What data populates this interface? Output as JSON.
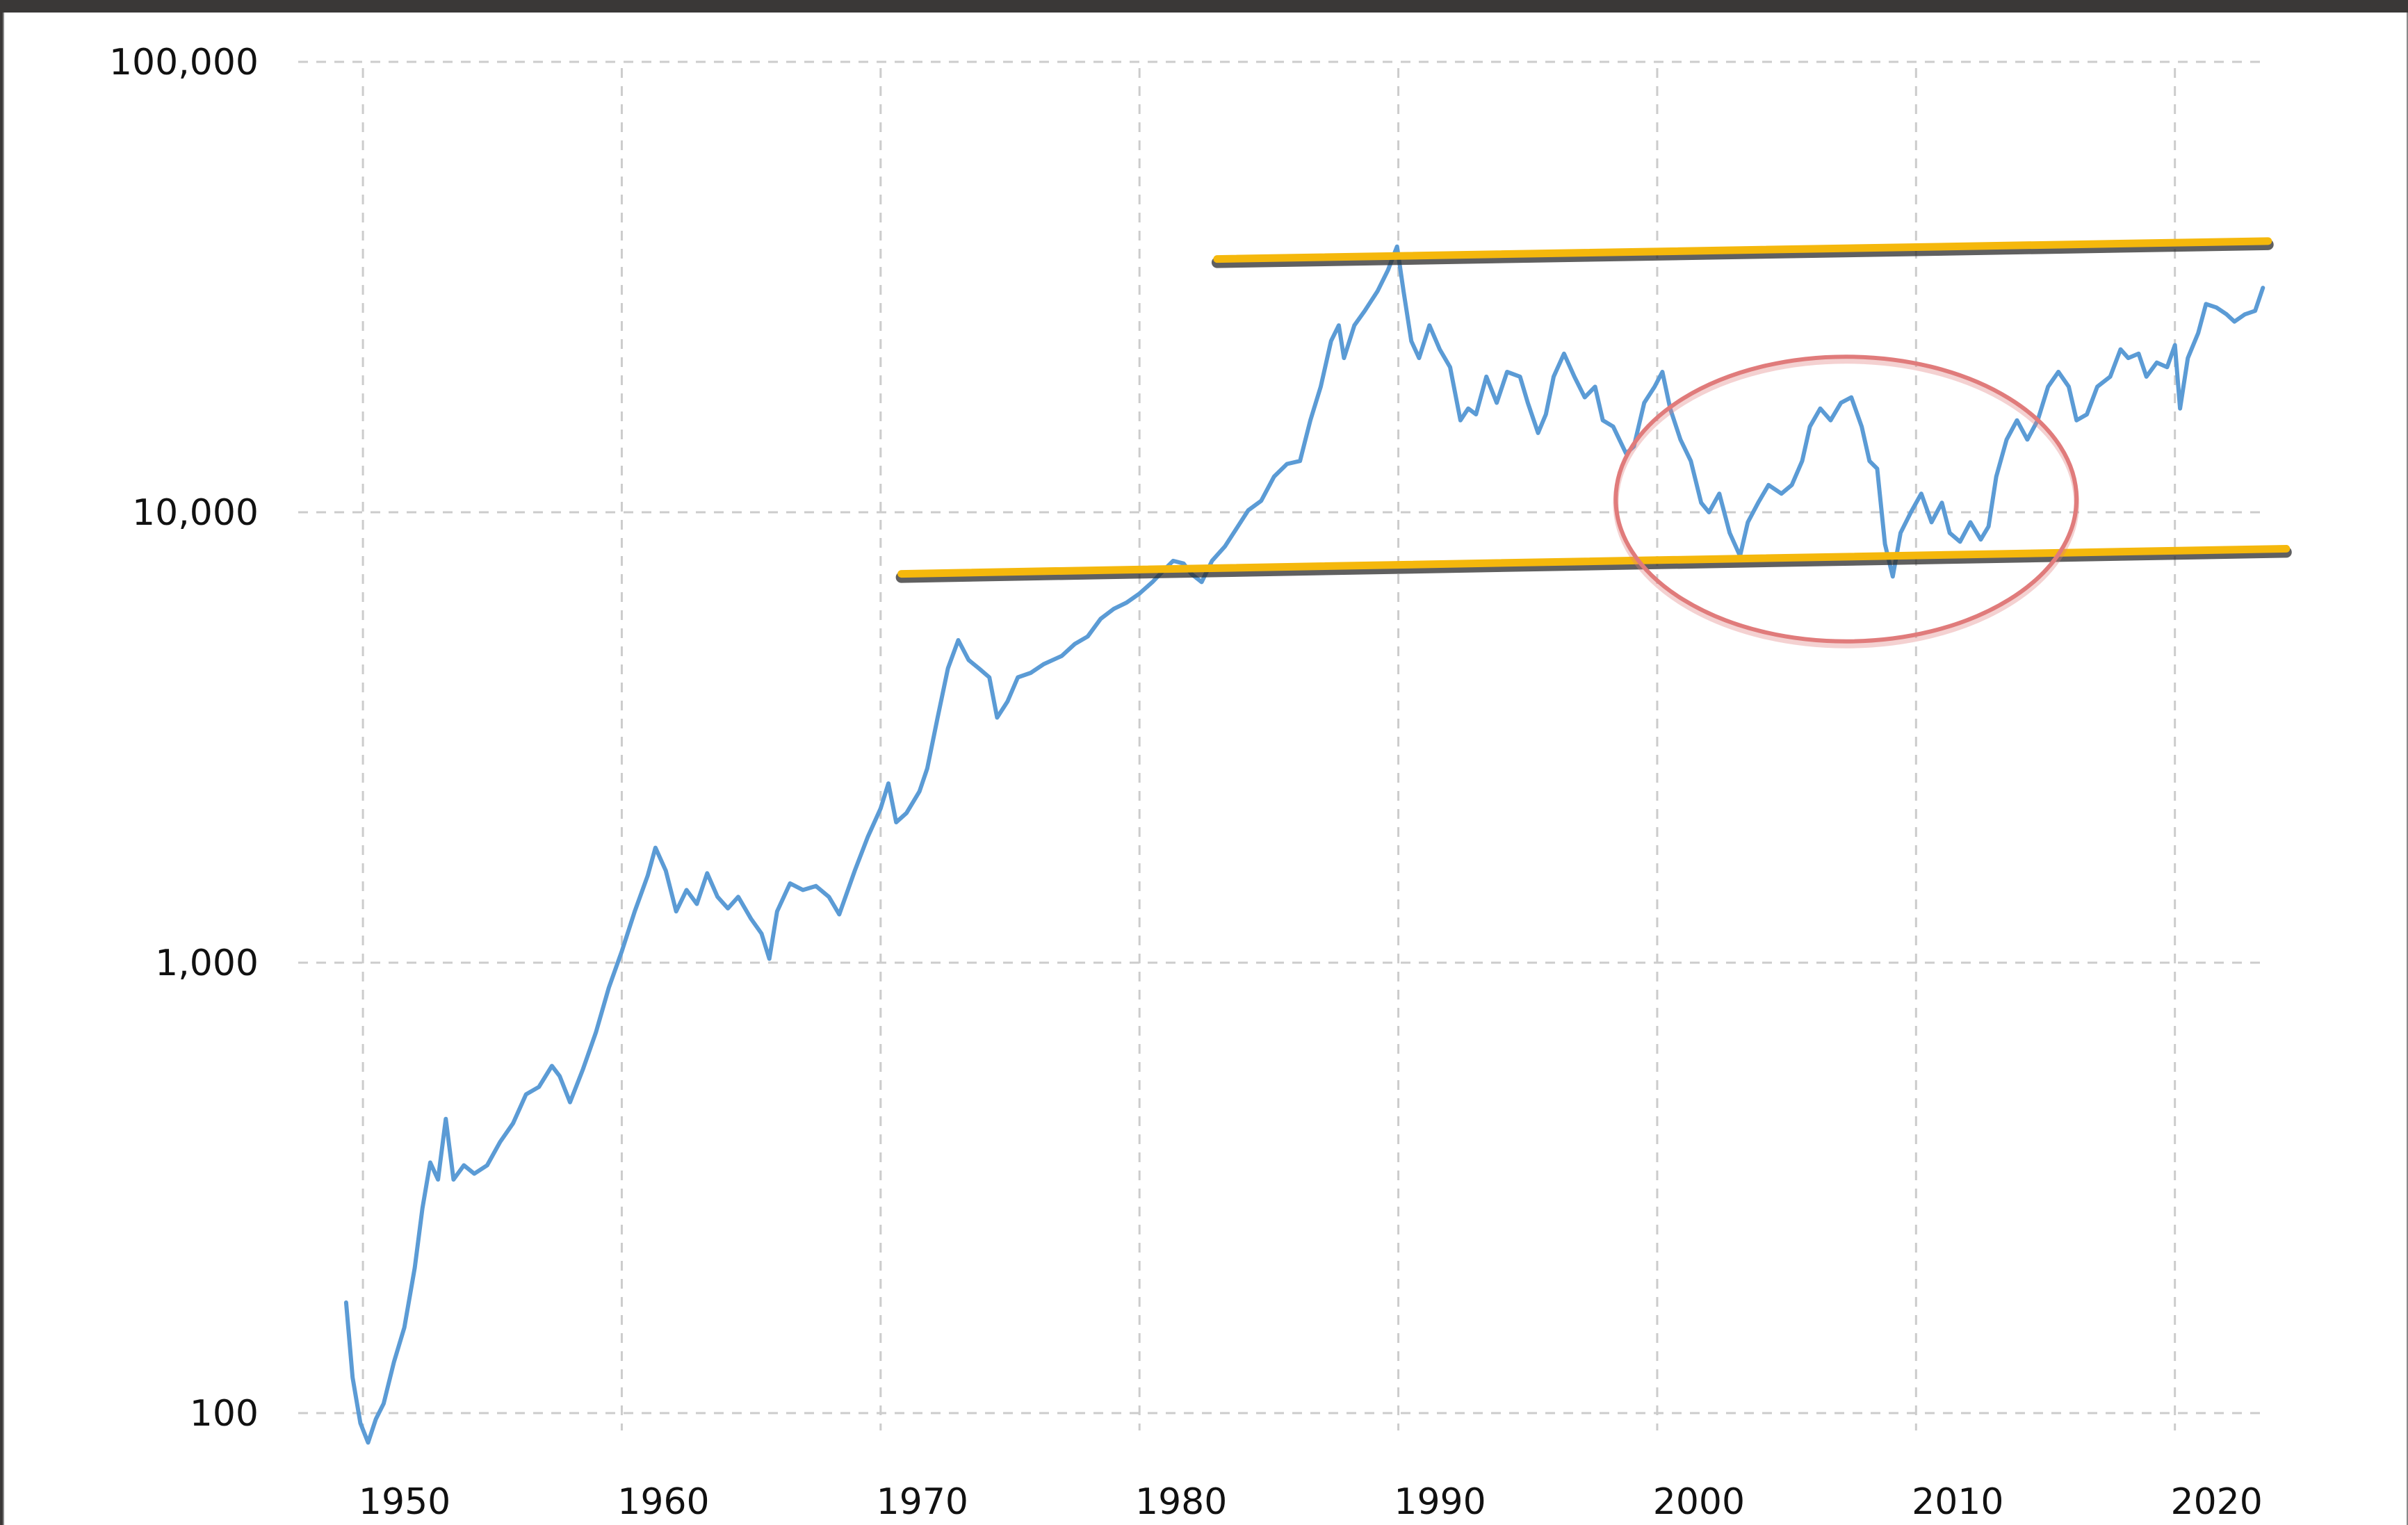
{
  "chart_data": {
    "type": "line",
    "title": "",
    "xlabel": "",
    "ylabel": "",
    "y_scale": "log",
    "xlim": [
      1947.5,
      2023.5
    ],
    "ylim": [
      100,
      100000
    ],
    "grid": true,
    "grid_style": "dashed",
    "x_ticks": [
      1950,
      1960,
      1970,
      1980,
      1990,
      2000,
      2010,
      2020
    ],
    "x_tick_labels": [
      "1950",
      "1960",
      "1970",
      "1980",
      "1990",
      "2000",
      "2010",
      "2020"
    ],
    "y_ticks": [
      100,
      1000,
      10000,
      100000
    ],
    "y_tick_labels": [
      "100",
      "1,000",
      "10,000",
      "100,000"
    ],
    "colors": {
      "line": "#5b9bd5",
      "trend": "#f5b80c",
      "highlight": "#e07b7b",
      "grid": "#cccccc"
    },
    "series": [
      {
        "points": [
          [
            1949.35,
            176
          ],
          [
            1949.6,
            120
          ],
          [
            1949.9,
            95
          ],
          [
            1950.2,
            86
          ],
          [
            1950.5,
            97
          ],
          [
            1950.8,
            105
          ],
          [
            1951.2,
            130
          ],
          [
            1951.6,
            155
          ],
          [
            1952.0,
            210
          ],
          [
            1952.3,
            285
          ],
          [
            1952.6,
            360
          ],
          [
            1952.9,
            330
          ],
          [
            1953.2,
            450
          ],
          [
            1953.5,
            330
          ],
          [
            1953.9,
            355
          ],
          [
            1954.3,
            340
          ],
          [
            1954.8,
            355
          ],
          [
            1955.3,
            400
          ],
          [
            1955.8,
            440
          ],
          [
            1956.3,
            510
          ],
          [
            1956.8,
            530
          ],
          [
            1957.3,
            590
          ],
          [
            1957.6,
            560
          ],
          [
            1958.0,
            490
          ],
          [
            1958.5,
            580
          ],
          [
            1959.0,
            700
          ],
          [
            1959.5,
            880
          ],
          [
            1960.0,
            1060
          ],
          [
            1960.5,
            1300
          ],
          [
            1961.0,
            1560
          ],
          [
            1961.3,
            1800
          ],
          [
            1961.7,
            1600
          ],
          [
            1962.1,
            1300
          ],
          [
            1962.5,
            1450
          ],
          [
            1962.9,
            1350
          ],
          [
            1963.3,
            1580
          ],
          [
            1963.7,
            1400
          ],
          [
            1964.1,
            1320
          ],
          [
            1964.5,
            1400
          ],
          [
            1965.0,
            1250
          ],
          [
            1965.4,
            1160
          ],
          [
            1965.7,
            1020
          ],
          [
            1966.0,
            1300
          ],
          [
            1966.5,
            1500
          ],
          [
            1967.0,
            1450
          ],
          [
            1967.5,
            1480
          ],
          [
            1968.0,
            1400
          ],
          [
            1968.4,
            1280
          ],
          [
            1969.0,
            1600
          ],
          [
            1969.5,
            1900
          ],
          [
            1970.0,
            2200
          ],
          [
            1970.3,
            2500
          ],
          [
            1970.6,
            2050
          ],
          [
            1971.0,
            2150
          ],
          [
            1971.5,
            2400
          ],
          [
            1971.8,
            2700
          ],
          [
            1972.2,
            3500
          ],
          [
            1972.6,
            4500
          ],
          [
            1973.0,
            5200
          ],
          [
            1973.4,
            4700
          ],
          [
            1973.8,
            4500
          ],
          [
            1974.2,
            4300
          ],
          [
            1974.5,
            3500
          ],
          [
            1974.9,
            3800
          ],
          [
            1975.3,
            4300
          ],
          [
            1975.8,
            4400
          ],
          [
            1976.3,
            4600
          ],
          [
            1977.0,
            4800
          ],
          [
            1977.5,
            5100
          ],
          [
            1978.0,
            5300
          ],
          [
            1978.5,
            5800
          ],
          [
            1979.0,
            6100
          ],
          [
            1979.5,
            6300
          ],
          [
            1980.0,
            6600
          ],
          [
            1980.5,
            7000
          ],
          [
            1981.0,
            7500
          ],
          [
            1981.3,
            7800
          ],
          [
            1981.7,
            7700
          ],
          [
            1982.0,
            7300
          ],
          [
            1982.4,
            7000
          ],
          [
            1982.8,
            7800
          ],
          [
            1983.3,
            8400
          ],
          [
            1983.8,
            9300
          ],
          [
            1984.2,
            10100
          ],
          [
            1984.7,
            10600
          ],
          [
            1985.2,
            12000
          ],
          [
            1985.7,
            12800
          ],
          [
            1986.2,
            13000
          ],
          [
            1986.6,
            16000
          ],
          [
            1987.0,
            19000
          ],
          [
            1987.4,
            24000
          ],
          [
            1987.7,
            26000
          ],
          [
            1987.9,
            22000
          ],
          [
            1988.3,
            26000
          ],
          [
            1988.7,
            28000
          ],
          [
            1989.2,
            31000
          ],
          [
            1989.6,
            34500
          ],
          [
            1989.95,
            38900
          ],
          [
            1990.2,
            31000
          ],
          [
            1990.5,
            24000
          ],
          [
            1990.8,
            22000
          ],
          [
            1991.2,
            26000
          ],
          [
            1991.6,
            23000
          ],
          [
            1992.0,
            21000
          ],
          [
            1992.4,
            16000
          ],
          [
            1992.7,
            17000
          ],
          [
            1993.0,
            16500
          ],
          [
            1993.4,
            20000
          ],
          [
            1993.8,
            17500
          ],
          [
            1994.2,
            20500
          ],
          [
            1994.7,
            20000
          ],
          [
            1995.0,
            17500
          ],
          [
            1995.4,
            15000
          ],
          [
            1995.7,
            16500
          ],
          [
            1996.0,
            20000
          ],
          [
            1996.4,
            22500
          ],
          [
            1996.8,
            20000
          ],
          [
            1997.2,
            18000
          ],
          [
            1997.6,
            19000
          ],
          [
            1997.9,
            16000
          ],
          [
            1998.3,
            15500
          ],
          [
            1998.8,
            13500
          ],
          [
            1999.1,
            14000
          ],
          [
            1999.5,
            17500
          ],
          [
            1999.9,
            19000
          ],
          [
            2000.2,
            20500
          ],
          [
            2000.5,
            17000
          ],
          [
            2000.9,
            14500
          ],
          [
            2001.3,
            13000
          ],
          [
            2001.7,
            10500
          ],
          [
            2002.0,
            10000
          ],
          [
            2002.4,
            11000
          ],
          [
            2002.8,
            9000
          ],
          [
            2003.2,
            8000
          ],
          [
            2003.5,
            9500
          ],
          [
            2003.9,
            10500
          ],
          [
            2004.3,
            11500
          ],
          [
            2004.8,
            11000
          ],
          [
            2005.2,
            11500
          ],
          [
            2005.6,
            13000
          ],
          [
            2005.9,
            15500
          ],
          [
            2006.3,
            17000
          ],
          [
            2006.7,
            16000
          ],
          [
            2007.1,
            17500
          ],
          [
            2007.5,
            18000
          ],
          [
            2007.9,
            15500
          ],
          [
            2008.2,
            13000
          ],
          [
            2008.5,
            12500
          ],
          [
            2008.8,
            8500
          ],
          [
            2009.1,
            7200
          ],
          [
            2009.4,
            9000
          ],
          [
            2009.8,
            10000
          ],
          [
            2010.2,
            11000
          ],
          [
            2010.6,
            9500
          ],
          [
            2011.0,
            10500
          ],
          [
            2011.3,
            9000
          ],
          [
            2011.7,
            8600
          ],
          [
            2012.1,
            9500
          ],
          [
            2012.5,
            8700
          ],
          [
            2012.8,
            9300
          ],
          [
            2013.1,
            12000
          ],
          [
            2013.5,
            14500
          ],
          [
            2013.9,
            16000
          ],
          [
            2014.3,
            14500
          ],
          [
            2014.7,
            16000
          ],
          [
            2015.1,
            19000
          ],
          [
            2015.5,
            20500
          ],
          [
            2015.9,
            19000
          ],
          [
            2016.2,
            16000
          ],
          [
            2016.6,
            16500
          ],
          [
            2017.0,
            19000
          ],
          [
            2017.5,
            20000
          ],
          [
            2017.9,
            23000
          ],
          [
            2018.2,
            22000
          ],
          [
            2018.6,
            22500
          ],
          [
            2018.9,
            20000
          ],
          [
            2019.3,
            21500
          ],
          [
            2019.7,
            21000
          ],
          [
            2020.0,
            23500
          ],
          [
            2020.2,
            17000
          ],
          [
            2020.5,
            22000
          ],
          [
            2020.9,
            25000
          ],
          [
            2021.2,
            29000
          ],
          [
            2021.6,
            28500
          ],
          [
            2022.0,
            27500
          ],
          [
            2022.3,
            26500
          ],
          [
            2022.7,
            27500
          ],
          [
            2023.1,
            28000
          ],
          [
            2023.4,
            31500
          ]
        ]
      }
    ],
    "annotations": [
      {
        "type": "trend-line",
        "label": "",
        "from": [
          1983.0,
          36500
        ],
        "to": [
          2023.6,
          40000
        ]
      },
      {
        "type": "trend-line",
        "label": "",
        "from": [
          1970.8,
          7300
        ],
        "to": [
          2024.3,
          8300
        ]
      },
      {
        "type": "ellipse",
        "label": "",
        "center": [
          2007.3,
          10700
        ],
        "rx_years": 8.9,
        "ry_factor": 2.07
      }
    ]
  }
}
